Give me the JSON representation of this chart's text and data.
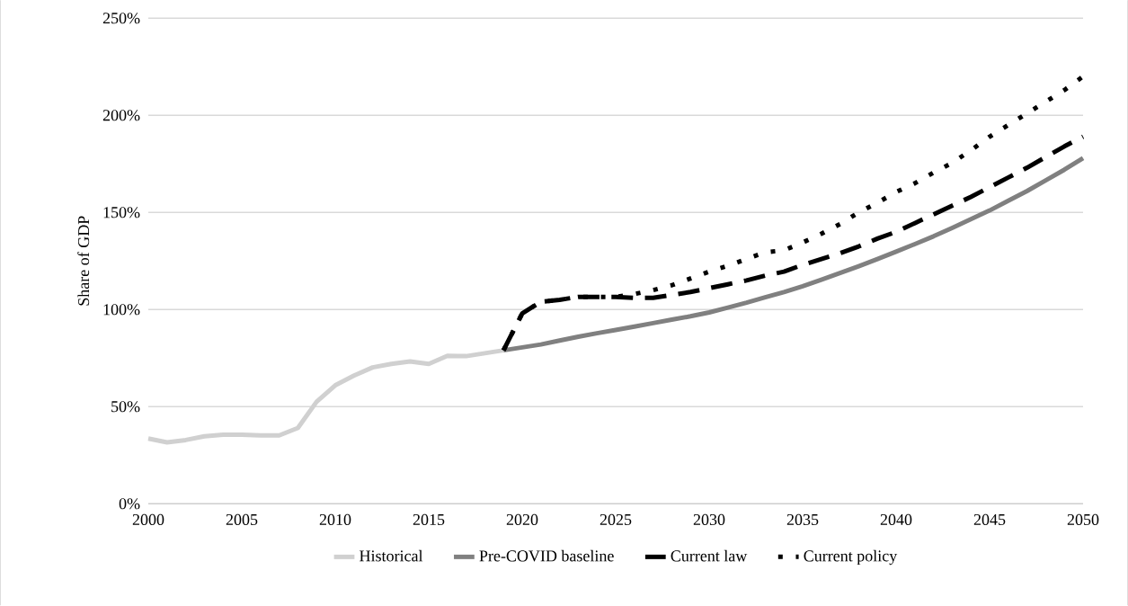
{
  "chart_data": {
    "type": "line",
    "ylabel": "Share of GDP",
    "xlim": [
      2000,
      2050
    ],
    "xticks": [
      2000,
      2005,
      2010,
      2015,
      2020,
      2025,
      2030,
      2035,
      2040,
      2045,
      2050
    ],
    "ylim": [
      0,
      250
    ],
    "yticks": [
      {
        "value": 0,
        "label": "0%"
      },
      {
        "value": 50,
        "label": "50%"
      },
      {
        "value": 100,
        "label": "100%"
      },
      {
        "value": 150,
        "label": "150%"
      },
      {
        "value": 200,
        "label": "200%"
      },
      {
        "value": 250,
        "label": "250%"
      }
    ],
    "grid": "y",
    "legend": "bottom",
    "marker": "none",
    "series": [
      {
        "name": "Historical",
        "color": "#d0d0d0",
        "line_style": "solid",
        "x": [
          2000,
          2001,
          2002,
          2003,
          2004,
          2005,
          2006,
          2007,
          2008,
          2009,
          2010,
          2011,
          2012,
          2013,
          2014,
          2015,
          2016,
          2017,
          2018,
          2019
        ],
        "values": [
          33.6,
          31.6,
          32.8,
          34.7,
          35.5,
          35.5,
          35.2,
          35.2,
          39,
          52.5,
          61,
          66,
          70.2,
          72,
          73.3,
          72,
          76.2,
          76,
          77.5,
          79
        ]
      },
      {
        "name": "Pre-COVID baseline",
        "color": "#808080",
        "line_style": "solid",
        "x": [
          2019,
          2020,
          2021,
          2022,
          2023,
          2024,
          2025,
          2026,
          2027,
          2028,
          2029,
          2030,
          2031,
          2032,
          2033,
          2034,
          2035,
          2036,
          2037,
          2038,
          2039,
          2040,
          2041,
          2042,
          2043,
          2044,
          2045,
          2046,
          2047,
          2048,
          2049,
          2050
        ],
        "values": [
          79,
          80.5,
          82,
          84,
          86,
          87.8,
          89.5,
          91.2,
          93,
          94.8,
          96.5,
          98.5,
          101,
          103.5,
          106.3,
          109,
          112,
          115.3,
          118.8,
          122.3,
          126,
          129.8,
          133.7,
          137.7,
          142,
          146.5,
          151,
          156,
          161,
          166.5,
          172,
          178
        ]
      },
      {
        "name": "Current law",
        "color": "#000000",
        "line_style": "dashed",
        "x": [
          2019,
          2020,
          2021,
          2022,
          2023,
          2024,
          2025,
          2026,
          2027,
          2028,
          2029,
          2030,
          2031,
          2032,
          2033,
          2034,
          2035,
          2036,
          2037,
          2038,
          2039,
          2040,
          2041,
          2042,
          2043,
          2044,
          2045,
          2046,
          2047,
          2048,
          2049,
          2050
        ],
        "values": [
          79,
          98,
          104,
          105,
          106.5,
          106.5,
          106.5,
          106,
          106,
          107.5,
          109,
          111,
          113,
          115,
          117.5,
          119.5,
          123,
          126,
          129,
          132.5,
          136.5,
          140,
          144.5,
          149,
          153.5,
          158,
          163,
          168,
          173,
          178.5,
          184,
          189
        ]
      },
      {
        "name": "Current policy",
        "color": "#000000",
        "line_style": "dotted",
        "x": [
          2019,
          2020,
          2021,
          2022,
          2023,
          2024,
          2025,
          2026,
          2027,
          2028,
          2029,
          2030,
          2031,
          2032,
          2033,
          2034,
          2035,
          2036,
          2037,
          2038,
          2039,
          2040,
          2041,
          2042,
          2043,
          2044,
          2045,
          2046,
          2047,
          2048,
          2049,
          2050
        ],
        "values": [
          79,
          98,
          104,
          105,
          106.5,
          106.5,
          106.5,
          108,
          110,
          112.5,
          116,
          119.5,
          122.5,
          126,
          129.5,
          130.5,
          134.5,
          139,
          144,
          150,
          155,
          160.5,
          165,
          170.5,
          175.5,
          182,
          189,
          195,
          201,
          207,
          213,
          220
        ]
      }
    ]
  }
}
